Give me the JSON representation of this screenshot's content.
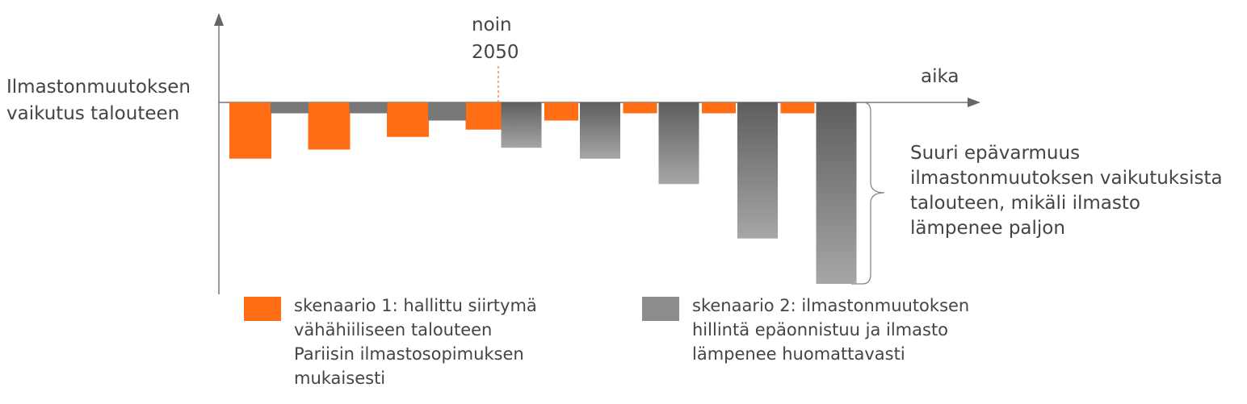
{
  "chart_data": {
    "type": "bar",
    "ylabel": [
      "Ilmastonmuutoksen",
      "vaikutus talouteen"
    ],
    "xlabel": "aika",
    "marker_label": [
      "noin",
      "2050"
    ],
    "annotation": [
      "Suuri epävarmuus",
      "ilmastonmuutoksen vaikutuksista",
      "talouteen, mikäli ilmasto",
      "lämpenee paljon"
    ],
    "ylim": [
      -100,
      0
    ],
    "periods": 8,
    "marker_after_period": 3,
    "series": [
      {
        "name": [
          "skenaario 1: hallittu siirtymä",
          "vähähiiliseen talouteen",
          "Pariisin ilmastosopimuksen",
          "mukaisesti"
        ],
        "color": "#ff6d14",
        "values": [
          -31,
          -26,
          -19,
          -15,
          -10,
          -6,
          -6,
          -6
        ]
      },
      {
        "name": [
          "skenaario 2: ilmastonmuutoksen",
          "hillintä epäonnistuu ja ilmasto",
          "lämpenee huomattavasti"
        ],
        "color": "#888888",
        "values": [
          -6,
          -6,
          -10,
          -25,
          -31,
          -45,
          -75,
          -100
        ]
      }
    ]
  }
}
